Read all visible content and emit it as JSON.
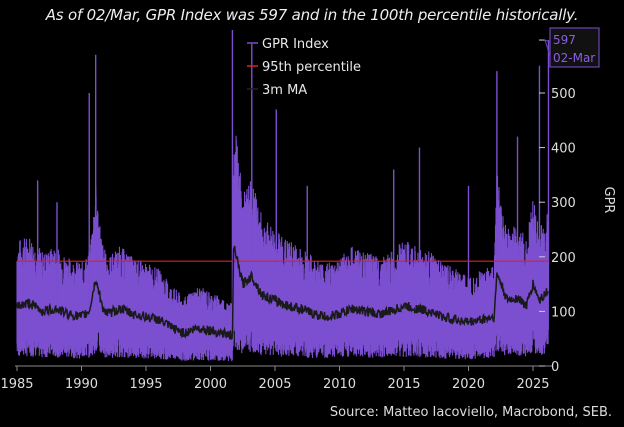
{
  "subtitle": "As of 02/Mar, GPR Index was 597 and in the 100th percentile historically.",
  "source": "Source: Matteo Iacoviello, Macrobond, SEB.",
  "chart_data": {
    "type": "line",
    "ylabel": "GPR",
    "ylim": [
      0,
      620
    ],
    "xlim": [
      1985,
      2026.2
    ],
    "x_ticks": [
      "1985",
      "1990",
      "1995",
      "2000",
      "2005",
      "2010",
      "2015",
      "2020",
      "2025"
    ],
    "y_ticks": [
      "0",
      "100",
      "200",
      "300",
      "400",
      "500"
    ],
    "legend": [
      "GPR Index",
      "95th percentile",
      "3m MA"
    ],
    "legend_position": "top-center",
    "colors": {
      "gpr": "#7b4fd0",
      "p95": "#e0201a",
      "ma": "#1a1a1a"
    },
    "p95_value": 192,
    "ma_3m": {
      "x": [
        1985,
        1986,
        1987,
        1988,
        1989,
        1990,
        1990.6,
        1991.1,
        1991.6,
        1992,
        1993,
        1994,
        1995,
        1996,
        1997,
        1998,
        1999,
        2000,
        2001,
        2001.7,
        2001.8,
        2002.5,
        2003.2,
        2004,
        2005,
        2006,
        2007,
        2008,
        2009,
        2010,
        2011,
        2012,
        2013,
        2014,
        2015,
        2016,
        2017,
        2018,
        2019,
        2020,
        2021,
        2022,
        2022.2,
        2023,
        2023.8,
        2024.5,
        2025,
        2025.5,
        2026.2
      ],
      "y": [
        110,
        115,
        100,
        105,
        95,
        90,
        100,
        160,
        110,
        95,
        105,
        95,
        90,
        85,
        70,
        60,
        70,
        65,
        60,
        55,
        220,
        150,
        165,
        130,
        120,
        110,
        105,
        95,
        90,
        95,
        105,
        100,
        95,
        100,
        110,
        105,
        100,
        90,
        85,
        80,
        85,
        90,
        170,
        120,
        125,
        110,
        150,
        120,
        140
      ]
    },
    "spikes": {
      "x": [
        1986.6,
        1988.1,
        1990.6,
        1991.1,
        2001.7,
        2003.2,
        2005.1,
        2007.5,
        2014.2,
        2016.2,
        2020.0,
        2022.2,
        2023.8,
        2025.5,
        2026.2
      ],
      "y": [
        340,
        300,
        500,
        570,
        620,
        590,
        470,
        330,
        360,
        400,
        330,
        540,
        420,
        550,
        597
      ]
    },
    "callout": {
      "value": "597",
      "date": "02-Mar"
    }
  }
}
